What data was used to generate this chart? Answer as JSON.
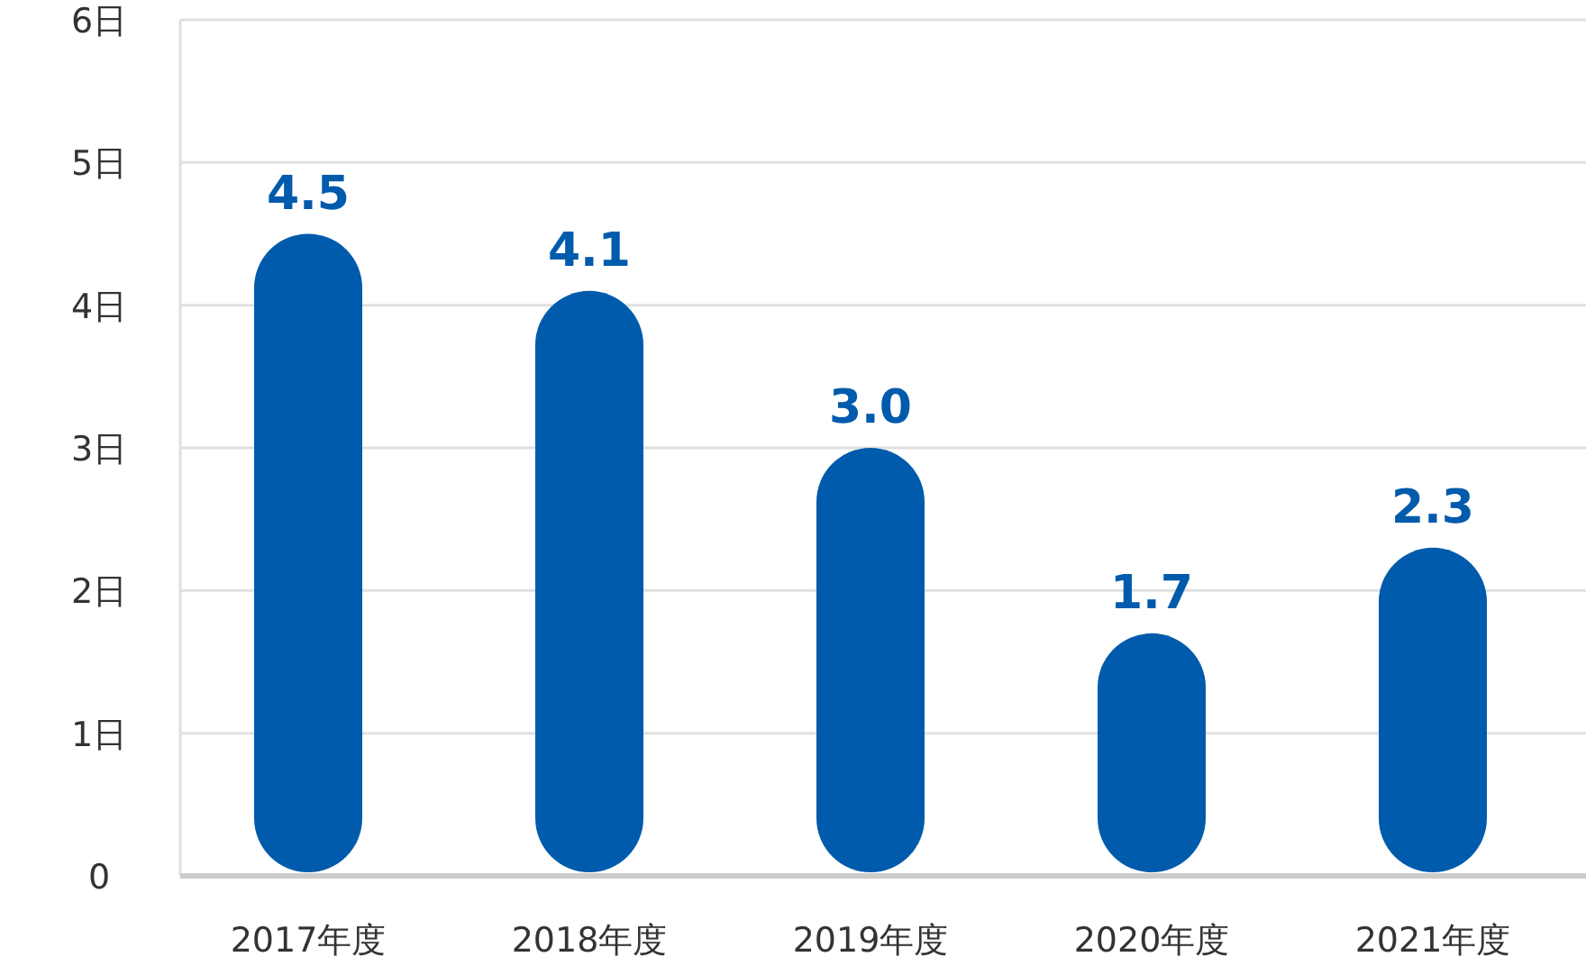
{
  "chart_data": {
    "type": "bar",
    "categories": [
      "2017年度",
      "2018年度",
      "2019年度",
      "2020年度",
      "2021年度"
    ],
    "values": [
      4.5,
      4.1,
      3.0,
      1.7,
      2.3
    ],
    "color": "#005bac",
    "value_labels": [
      "4.5",
      "4.1",
      "3.0",
      "1.7",
      "2.3"
    ],
    "ylim": [
      0,
      6
    ],
    "yticks": [
      0,
      {
        "value": 1,
        "label": "1日"
      },
      {
        "value": 2,
        "label": "2日"
      },
      {
        "value": 3,
        "label": "3日"
      },
      {
        "value": 4,
        "label": "4日"
      },
      {
        "value": 5,
        "label": "5日"
      },
      {
        "value": 6,
        "label": "6日"
      }
    ],
    "grid": "y"
  }
}
